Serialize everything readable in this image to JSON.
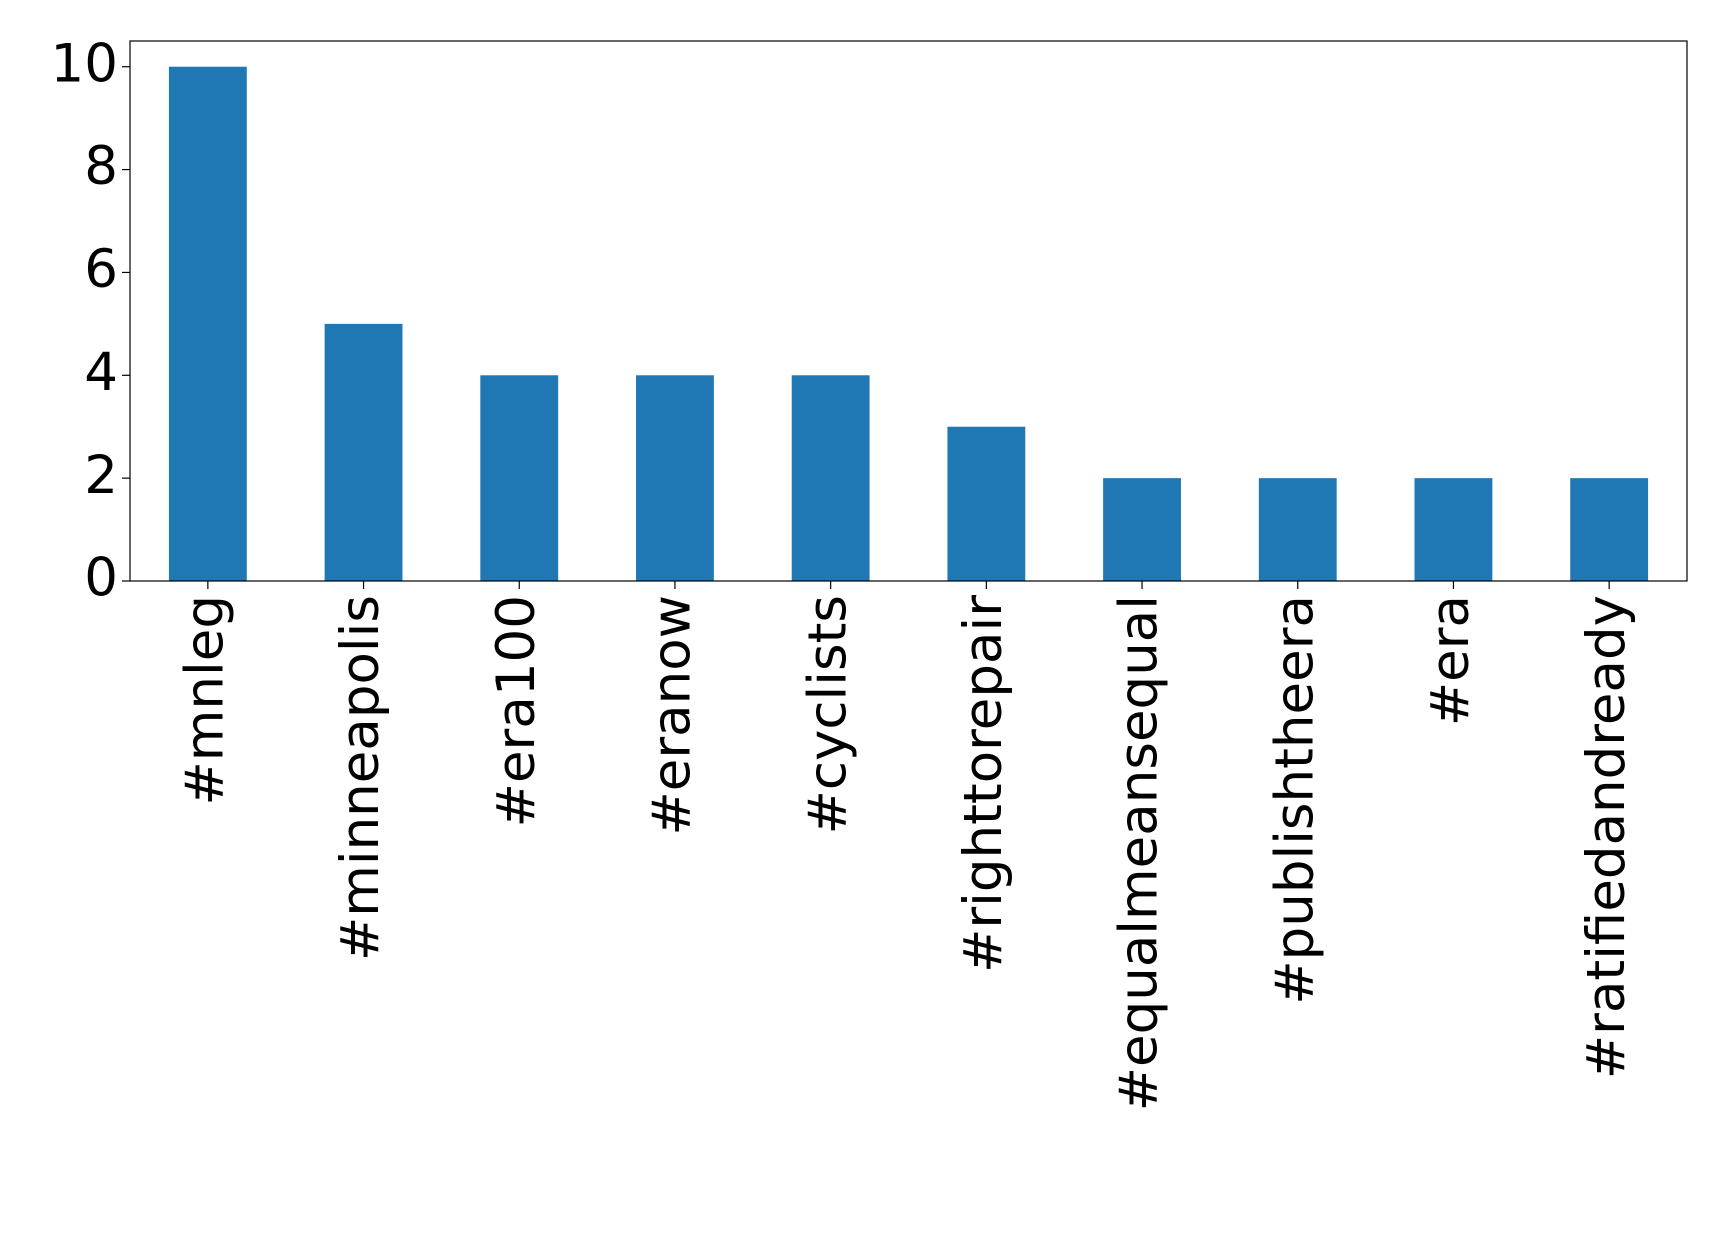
{
  "chart_data": {
    "type": "bar",
    "categories": [
      "#mnleg",
      "#minneapolis",
      "#era100",
      "#eranow",
      "#cyclists",
      "#righttorepair",
      "#equalmeansequal",
      "#publishtheera",
      "#era",
      "#ratifiedandready"
    ],
    "values": [
      10,
      5,
      4,
      4,
      4,
      3,
      2,
      2,
      2,
      2
    ],
    "color": "#1f77b4",
    "ylim": [
      0,
      10.5
    ],
    "yticks": [
      0,
      2,
      4,
      6,
      8,
      10
    ],
    "grid": false
  }
}
